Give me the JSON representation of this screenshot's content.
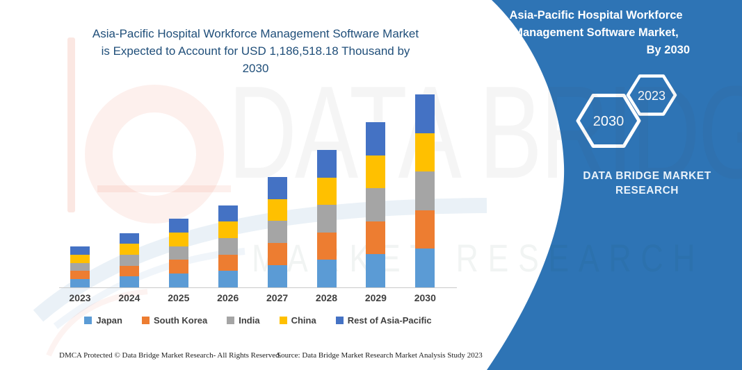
{
  "chart": {
    "title_lines": [
      "Asia-Pacific Hospital Workforce Management Software Market",
      "is Expected to Account for USD 1,186,518.18 Thousand by",
      "2030"
    ]
  },
  "chart_data": {
    "type": "bar",
    "stacked": true,
    "title": "Asia-Pacific Hospital Workforce Management Software Market is Expected to Account for USD 1,186,518.18 Thousand by 2030",
    "y_units": "USD Thousand",
    "xlabel": "",
    "ylabel": "",
    "grid": false,
    "y_axis_visible": false,
    "legend_position": "bottom",
    "categories": [
      "2023",
      "2024",
      "2025",
      "2026",
      "2027",
      "2028",
      "2029",
      "2030"
    ],
    "series": [
      {
        "name": "Japan",
        "color": "#5B9BD5",
        "values": [
          50500,
          67000,
          84500,
          101000,
          136100,
          168800,
          203100,
          237303.64
        ]
      },
      {
        "name": "South Korea",
        "color": "#ED7D31",
        "values": [
          50500,
          67000,
          84500,
          101000,
          136100,
          168800,
          203100,
          237303.64
        ]
      },
      {
        "name": "India",
        "color": "#A5A5A5",
        "values": [
          50500,
          67000,
          84500,
          101000,
          136100,
          168800,
          203100,
          237303.64
        ]
      },
      {
        "name": "China",
        "color": "#FFC000",
        "values": [
          50500,
          67000,
          84500,
          101000,
          136100,
          168800,
          203100,
          237303.64
        ]
      },
      {
        "name": "Rest of Asia-Pacific",
        "color": "#4472C4",
        "values": [
          50500,
          67000,
          84500,
          101000,
          136100,
          168800,
          203100,
          237303.64
        ]
      }
    ],
    "estimated_totals_usd_thousand": [
      252500,
      335000,
      422500,
      505000,
      680500,
      844000,
      1015500,
      1186518.18
    ]
  },
  "side_panel": {
    "bg_color": "#2E74B5",
    "title_lines": [
      "Asia-Pacific Hospital Workforce",
      "Management Software Market,",
      "By 2030"
    ],
    "hexagons": [
      {
        "label": "2023"
      },
      {
        "label": "2030"
      }
    ],
    "brand_lines": [
      "DATA BRIDGE MARKET",
      "RESEARCH"
    ]
  },
  "watermark": {
    "line1": "DATA BRIDGE",
    "line2": "MARKET RESEARCH"
  },
  "footer": {
    "left": "DMCA Protected © Data Bridge Market Research-  All Rights Reserved.",
    "right": "Source: Data Bridge Market Research  Market Analysis Study 2023"
  }
}
